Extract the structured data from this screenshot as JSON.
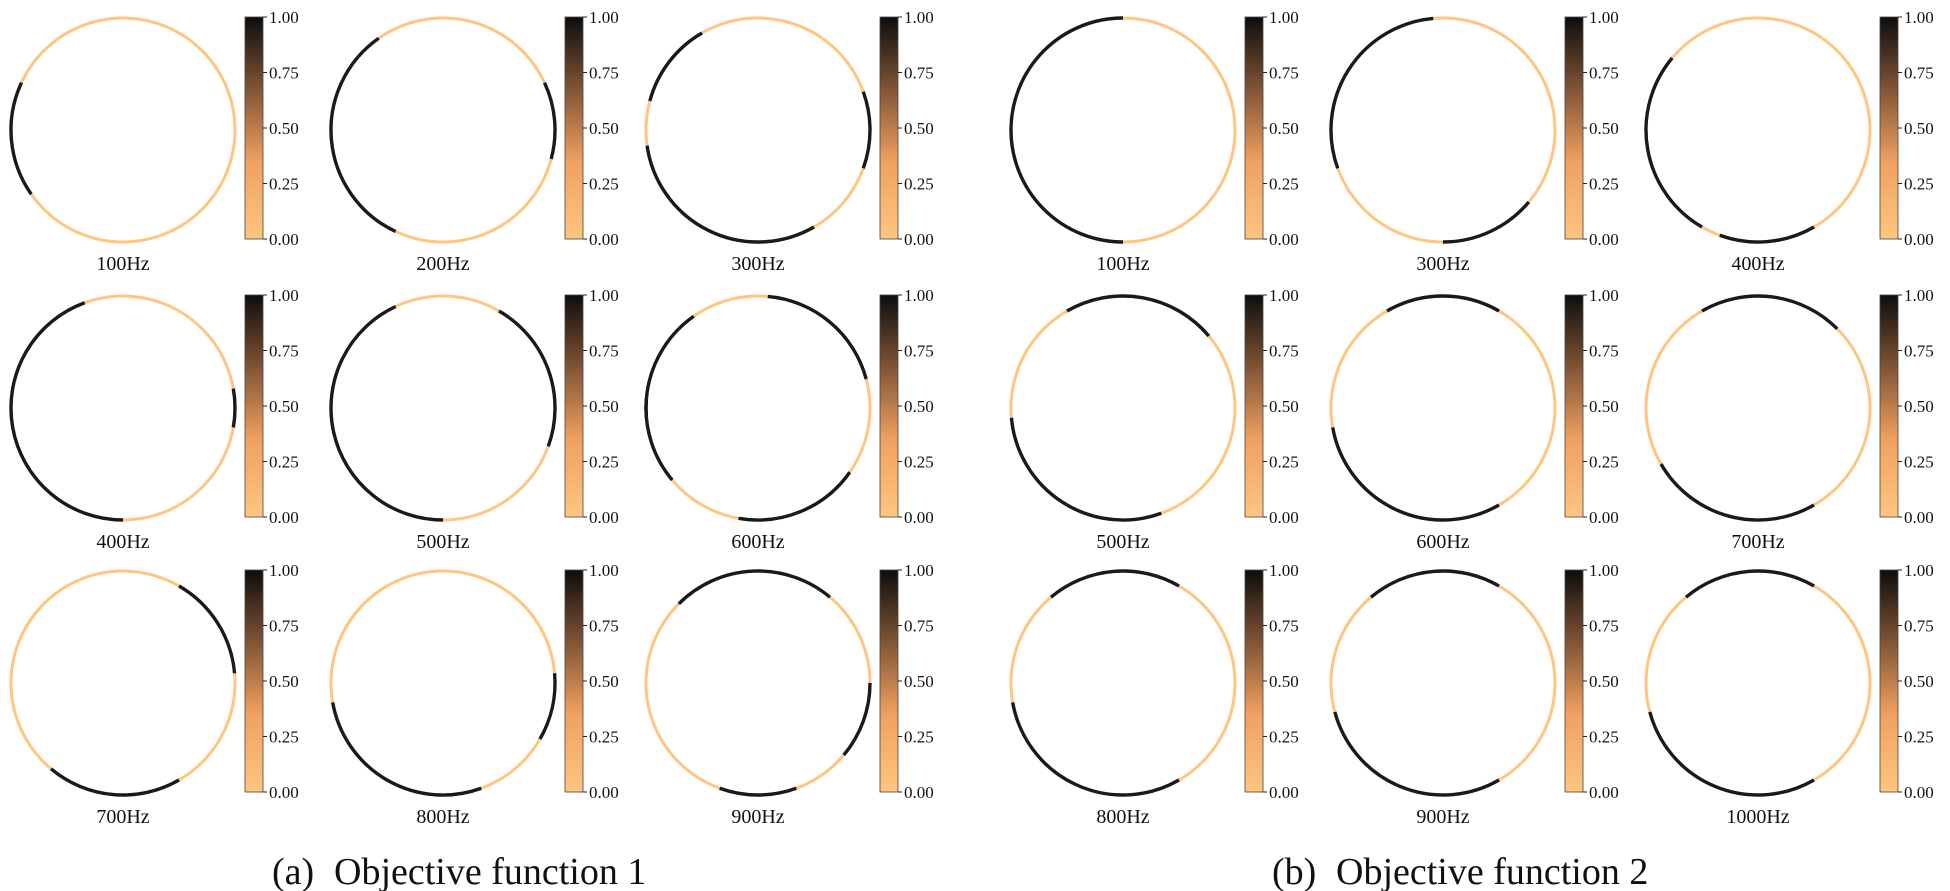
{
  "colors": {
    "empty": "#fec680",
    "filled": "#1a1a1a"
  },
  "colorbar_ticks": [
    "1.00",
    "0.75",
    "0.50",
    "0.25",
    "0.00"
  ],
  "panels": [
    {
      "caption_letter": "(a)",
      "caption_text": "Objective function 1",
      "subplots": [
        {
          "label": "100Hz",
          "black_arcs": [
            [
              145,
              205
            ]
          ]
        },
        {
          "label": "200Hz",
          "black_arcs": [
            [
              115,
              235
            ],
            [
              335,
              15
            ]
          ]
        },
        {
          "label": "300Hz",
          "black_arcs": [
            [
              60,
              172
            ],
            [
              340,
              20
            ],
            [
              195,
              240
            ]
          ]
        },
        {
          "label": "400Hz",
          "black_arcs": [
            [
              90,
              250
            ],
            [
              350,
              10
            ]
          ]
        },
        {
          "label": "500Hz",
          "black_arcs": [
            [
              90,
              245
            ],
            [
              300,
              20
            ]
          ]
        },
        {
          "label": "600Hz",
          "black_arcs": [
            [
              35,
              100
            ],
            [
              140,
              235
            ],
            [
              275,
              345
            ],
            [
              175,
              185
            ]
          ]
        },
        {
          "label": "700Hz",
          "black_arcs": [
            [
              60,
              130
            ],
            [
              300,
              355
            ]
          ]
        },
        {
          "label": "800Hz",
          "black_arcs": [
            [
              355,
              30
            ],
            [
              70,
              170
            ]
          ]
        },
        {
          "label": "900Hz",
          "black_arcs": [
            [
              225,
              310
            ],
            [
              70,
              110
            ],
            [
              0,
              40
            ]
          ]
        }
      ]
    },
    {
      "caption_letter": "(b)",
      "caption_text": "Objective function 2",
      "subplots": [
        {
          "label": "100Hz",
          "black_arcs": [
            [
              90,
              270
            ]
          ]
        },
        {
          "label": "300Hz",
          "black_arcs": [
            [
              160,
              265
            ],
            [
              40,
              90
            ]
          ]
        },
        {
          "label": "400Hz",
          "black_arcs": [
            [
              120,
              220
            ],
            [
              60,
              110
            ]
          ]
        },
        {
          "label": "500Hz",
          "black_arcs": [
            [
              70,
              175
            ],
            [
              240,
              320
            ]
          ]
        },
        {
          "label": "600Hz",
          "black_arcs": [
            [
              60,
              170
            ],
            [
              240,
              300
            ]
          ]
        },
        {
          "label": "700Hz",
          "black_arcs": [
            [
              60,
              150
            ],
            [
              240,
              315
            ]
          ]
        },
        {
          "label": "800Hz",
          "black_arcs": [
            [
              60,
              170
            ],
            [
              230,
              300
            ]
          ]
        },
        {
          "label": "900Hz",
          "black_arcs": [
            [
              60,
              165
            ],
            [
              230,
              300
            ]
          ]
        },
        {
          "label": "1000Hz",
          "black_arcs": [
            [
              60,
              165
            ],
            [
              230,
              300
            ]
          ]
        }
      ]
    }
  ]
}
